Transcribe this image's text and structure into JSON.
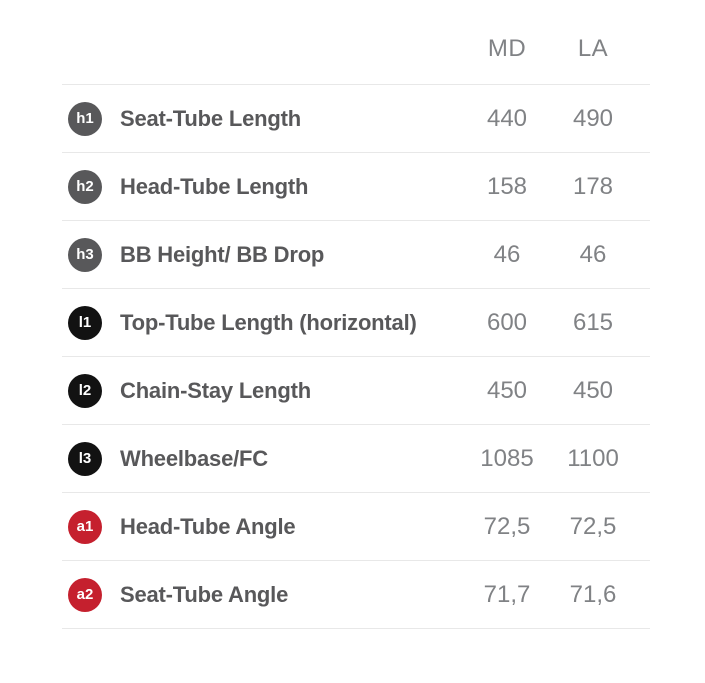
{
  "table": {
    "columns": [
      "MD",
      "LA"
    ],
    "rows": [
      {
        "badge": "h1",
        "badge_type": "h",
        "label": "Seat-Tube Length",
        "md": "440",
        "la": "490"
      },
      {
        "badge": "h2",
        "badge_type": "h",
        "label": "Head-Tube Length",
        "md": "158",
        "la": "178"
      },
      {
        "badge": "h3",
        "badge_type": "h",
        "label": "BB Height/ BB Drop",
        "md": "46",
        "la": "46"
      },
      {
        "badge": "l1",
        "badge_type": "l",
        "label": "Top-Tube Length (horizontal)",
        "md": "600",
        "la": "615"
      },
      {
        "badge": "l2",
        "badge_type": "l",
        "label": "Chain-Stay Length",
        "md": "450",
        "la": "450"
      },
      {
        "badge": "l3",
        "badge_type": "l",
        "label": "Wheelbase/FC",
        "md": "1085",
        "la": "1100"
      },
      {
        "badge": "a1",
        "badge_type": "a",
        "label": "Head-Tube Angle",
        "md": "72,5",
        "la": "72,5"
      },
      {
        "badge": "a2",
        "badge_type": "a",
        "label": "Seat-Tube Angle",
        "md": "71,7",
        "la": "71,6"
      }
    ],
    "colors": {
      "badge_h": "#58585a",
      "badge_l": "#121212",
      "badge_a": "#c5202e",
      "label_text": "#58585a",
      "value_text": "#808285",
      "divider": "#e8e8e8"
    }
  }
}
